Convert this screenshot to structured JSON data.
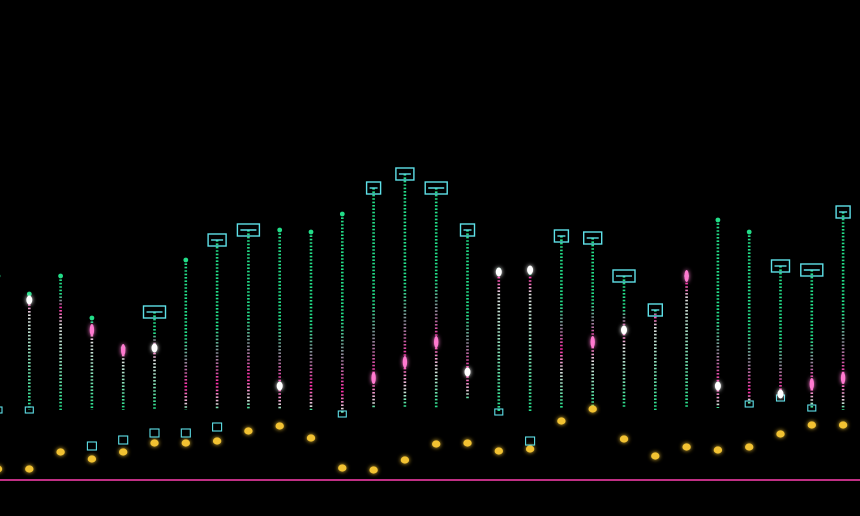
{
  "chart_data": {
    "type": "scatter",
    "description_free": true,
    "x": [
      0,
      1,
      2,
      3,
      4,
      5,
      6,
      7,
      8,
      9,
      10,
      11,
      12,
      13,
      14,
      15,
      16,
      17,
      18,
      19,
      20,
      21,
      22,
      23,
      24,
      25,
      26,
      27
    ],
    "stems": {
      "top": [
        276,
        294,
        276,
        318,
        348,
        312,
        260,
        240,
        230,
        230,
        232,
        214,
        188,
        174,
        188,
        230,
        270,
        270,
        236,
        238,
        276,
        310,
        276,
        220,
        232,
        266,
        270,
        212
      ],
      "bottom": [
        410,
        410,
        410,
        410,
        410,
        410,
        410,
        410,
        410,
        410,
        410,
        414,
        408,
        408,
        408,
        400,
        412,
        412,
        408,
        408,
        408,
        410,
        408,
        408,
        404,
        398,
        408,
        410
      ],
      "marker": [
        398,
        300,
        308,
        330,
        350,
        348,
        388,
        384,
        378,
        386,
        386,
        392,
        378,
        362,
        342,
        372,
        272,
        270,
        350,
        342,
        330,
        310,
        276,
        386,
        394,
        394,
        384,
        378
      ],
      "marker_style": [
        "none",
        "dot",
        "none",
        "glow",
        "glow",
        "dot",
        "none",
        "none",
        "none",
        "dot",
        "none",
        "none",
        "glow",
        "glow",
        "glow",
        "dot",
        "dot",
        "dot",
        "none",
        "glow",
        "dot",
        "none",
        "glow",
        "dot",
        "none",
        "dot",
        "glow",
        "glow"
      ],
      "top_cap": [
        false,
        false,
        false,
        false,
        false,
        true,
        false,
        true,
        true,
        false,
        false,
        false,
        true,
        true,
        true,
        true,
        false,
        false,
        true,
        true,
        true,
        true,
        false,
        false,
        false,
        true,
        true,
        true
      ],
      "bottom_cap": [
        true,
        true,
        false,
        false,
        false,
        false,
        false,
        false,
        false,
        false,
        false,
        true,
        false,
        false,
        false,
        false,
        true,
        false,
        false,
        false,
        false,
        false,
        false,
        false,
        true,
        true,
        true,
        false
      ],
      "colors_top": "#22dd88",
      "colors_mid": "#ff2aa8",
      "cap_color": "#5ee0e8"
    },
    "dots": {
      "y": [
        469,
        469,
        452,
        459,
        452,
        443,
        443,
        441,
        431,
        426,
        438,
        468,
        470,
        460,
        444,
        443,
        451,
        449,
        421,
        409,
        439,
        456,
        447,
        450,
        447,
        434,
        425,
        425
      ],
      "color": "#f2c230"
    },
    "small_caps": {
      "x": [
        3,
        4,
        5,
        6,
        7,
        17
      ],
      "y": [
        446,
        440,
        433,
        433,
        427,
        441
      ]
    },
    "baseline_color": "#ff3fb0",
    "background": "#000000"
  }
}
